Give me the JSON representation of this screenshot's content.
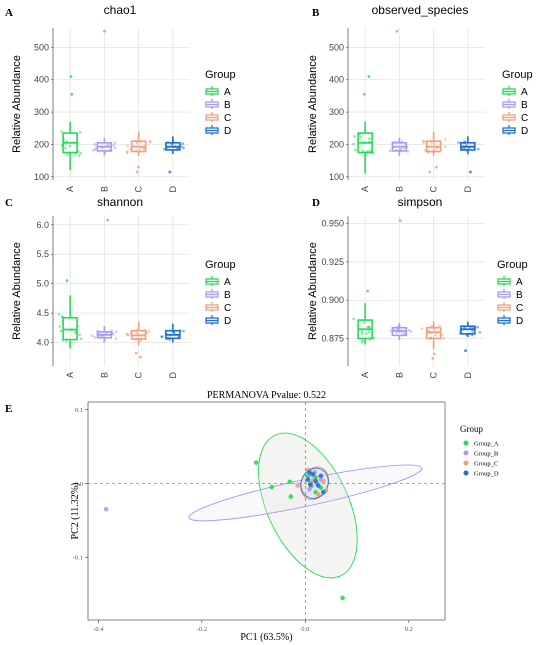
{
  "colors": {
    "A": "#22dd55",
    "B": "#aa99ee",
    "C": "#f0a07a",
    "D": "#1f6fd0",
    "grid": "#dddddd"
  },
  "legend_title": "Group",
  "chart_data": [
    {
      "type": "boxplot",
      "letter": "A",
      "title": "chao1",
      "ylabel": "Relative Abundance",
      "ylim": [
        90,
        560
      ],
      "yticks": [
        100,
        200,
        300,
        400,
        500
      ],
      "ytick_labels": [
        "100",
        "200",
        "300",
        "400",
        "500"
      ],
      "categories": [
        "A",
        "B",
        "C",
        "D"
      ],
      "boxes": [
        {
          "group": "A",
          "min": 120,
          "q1": 175,
          "median": 205,
          "q3": 235,
          "max": 270,
          "outliers": [
            355,
            410
          ]
        },
        {
          "group": "B",
          "min": 165,
          "q1": 180,
          "median": 193,
          "q3": 205,
          "max": 220,
          "outliers": [
            550
          ]
        },
        {
          "group": "C",
          "min": 165,
          "q1": 178,
          "median": 193,
          "q3": 210,
          "max": 240,
          "outliers": [
            115,
            130
          ]
        },
        {
          "group": "D",
          "min": 170,
          "q1": 183,
          "median": 193,
          "q3": 205,
          "max": 225,
          "outliers": [
            115
          ]
        }
      ]
    },
    {
      "type": "boxplot",
      "letter": "B",
      "title": "observed_species",
      "ylabel": "Relative Abundance",
      "ylim": [
        90,
        560
      ],
      "yticks": [
        100,
        200,
        300,
        400,
        500
      ],
      "ytick_labels": [
        "100",
        "200",
        "300",
        "400",
        "500"
      ],
      "categories": [
        "A",
        "B",
        "C",
        "D"
      ],
      "boxes": [
        {
          "group": "A",
          "min": 110,
          "q1": 175,
          "median": 205,
          "q3": 235,
          "max": 270,
          "outliers": [
            355,
            410
          ]
        },
        {
          "group": "B",
          "min": 165,
          "q1": 180,
          "median": 193,
          "q3": 205,
          "max": 220,
          "outliers": [
            550
          ]
        },
        {
          "group": "C",
          "min": 165,
          "q1": 178,
          "median": 193,
          "q3": 210,
          "max": 240,
          "outliers": [
            115,
            130
          ]
        },
        {
          "group": "D",
          "min": 170,
          "q1": 183,
          "median": 193,
          "q3": 205,
          "max": 225,
          "outliers": [
            115
          ]
        }
      ]
    },
    {
      "type": "boxplot",
      "letter": "C",
      "title": "shannon",
      "ylabel": "Relative Abundance",
      "ylim": [
        3.6,
        6.15
      ],
      "yticks": [
        4.0,
        4.5,
        5.0,
        5.5,
        6.0
      ],
      "ytick_labels": [
        "4.0",
        "4.5",
        "5.0",
        "5.5",
        "6.0"
      ],
      "categories": [
        "A",
        "B",
        "C",
        "D"
      ],
      "boxes": [
        {
          "group": "A",
          "min": 3.9,
          "q1": 4.05,
          "median": 4.22,
          "q3": 4.42,
          "max": 4.8,
          "outliers": [
            5.05
          ]
        },
        {
          "group": "B",
          "min": 4.0,
          "q1": 4.08,
          "median": 4.13,
          "q3": 4.18,
          "max": 4.28,
          "outliers": [
            6.08
          ]
        },
        {
          "group": "C",
          "min": 3.95,
          "q1": 4.06,
          "median": 4.12,
          "q3": 4.2,
          "max": 4.35,
          "outliers": [
            3.75,
            3.82
          ]
        },
        {
          "group": "D",
          "min": 4.0,
          "q1": 4.07,
          "median": 4.13,
          "q3": 4.2,
          "max": 4.32,
          "outliers": []
        }
      ]
    },
    {
      "type": "boxplot",
      "letter": "D",
      "title": "simpson",
      "ylabel": "Relative Abundance",
      "ylim": [
        0.857,
        0.955
      ],
      "yticks": [
        0.875,
        0.9,
        0.925,
        0.95
      ],
      "ytick_labels": [
        "0.875",
        "0.900",
        "0.925",
        "0.950"
      ],
      "categories": [
        "A",
        "B",
        "C",
        "D"
      ],
      "boxes": [
        {
          "group": "A",
          "min": 0.871,
          "q1": 0.875,
          "median": 0.881,
          "q3": 0.887,
          "max": 0.898,
          "outliers": [
            0.906
          ]
        },
        {
          "group": "B",
          "min": 0.874,
          "q1": 0.877,
          "median": 0.88,
          "q3": 0.882,
          "max": 0.885,
          "outliers": [
            0.952
          ]
        },
        {
          "group": "C",
          "min": 0.868,
          "q1": 0.875,
          "median": 0.879,
          "q3": 0.882,
          "max": 0.886,
          "outliers": [
            0.862,
            0.865
          ]
        },
        {
          "group": "D",
          "min": 0.876,
          "q1": 0.878,
          "median": 0.881,
          "q3": 0.883,
          "max": 0.886,
          "outliers": [
            0.867
          ]
        }
      ]
    },
    {
      "type": "scatter",
      "letter": "E",
      "title": "PERMANOVA Pvalue: 0.522",
      "xlabel": "PC1 (63.5%)",
      "ylabel": "PC2 (11.32%)",
      "xlim": [
        -0.42,
        0.27
      ],
      "ylim": [
        -0.185,
        0.11
      ],
      "xticks": [
        -0.4,
        -0.2,
        0.0,
        0.2
      ],
      "xtick_labels": [
        "-0.4",
        "-0.2",
        "0.0",
        "0.2"
      ],
      "yticks": [
        -0.1,
        0.0,
        0.1
      ],
      "ytick_labels": [
        "-0.1",
        "0.0",
        "0.1"
      ],
      "legend_title": "Group",
      "series": [
        {
          "name": "Group_A",
          "key": "A",
          "points": [
            [
              -0.095,
              0.028
            ],
            [
              -0.065,
              -0.005
            ],
            [
              -0.03,
              0.002
            ],
            [
              -0.028,
              -0.018
            ],
            [
              0.005,
              0.01
            ],
            [
              0.01,
              0.0
            ],
            [
              0.02,
              -0.012
            ],
            [
              0.03,
              -0.006
            ],
            [
              0.02,
              0.008
            ],
            [
              0.072,
              -0.155
            ]
          ]
        },
        {
          "name": "Group_B",
          "key": "B",
          "points": [
            [
              -0.385,
              -0.035
            ],
            [
              0.01,
              0.012
            ],
            [
              0.022,
              0.0
            ],
            [
              0.008,
              -0.008
            ],
            [
              0.03,
              0.005
            ],
            [
              0.018,
              0.015
            ],
            [
              0.012,
              -0.004
            ]
          ]
        },
        {
          "name": "Group_C",
          "key": "C",
          "points": [
            [
              -0.015,
              -0.003
            ],
            [
              0.025,
              -0.015
            ],
            [
              0.035,
              0.003
            ],
            [
              0.005,
              0.018
            ],
            [
              0.015,
              0.004
            ],
            [
              0.04,
              -0.01
            ]
          ]
        },
        {
          "name": "Group_D",
          "key": "D",
          "points": [
            [
              0.005,
              0.005
            ],
            [
              0.015,
              0.012
            ],
            [
              0.025,
              -0.003
            ],
            [
              0.03,
              0.01
            ],
            [
              0.01,
              -0.002
            ],
            [
              0.02,
              0.003
            ],
            [
              0.035,
              -0.012
            ],
            [
              0.008,
              0.015
            ]
          ]
        }
      ],
      "ellipses": [
        {
          "key": "A",
          "cx": 0.005,
          "cy": -0.03,
          "rx": 0.15,
          "ry": 0.055,
          "angle_deg": -115
        },
        {
          "key": "B",
          "cx": 0.0,
          "cy": -0.013,
          "rx": 0.23,
          "ry": 0.018,
          "angle_deg": -12
        },
        {
          "key": "C",
          "cx": 0.018,
          "cy": 0.0,
          "rx": 0.033,
          "ry": 0.018,
          "angle_deg": -65
        },
        {
          "key": "D",
          "cx": 0.018,
          "cy": 0.0,
          "rx": 0.03,
          "ry": 0.018,
          "angle_deg": -65
        }
      ]
    }
  ]
}
